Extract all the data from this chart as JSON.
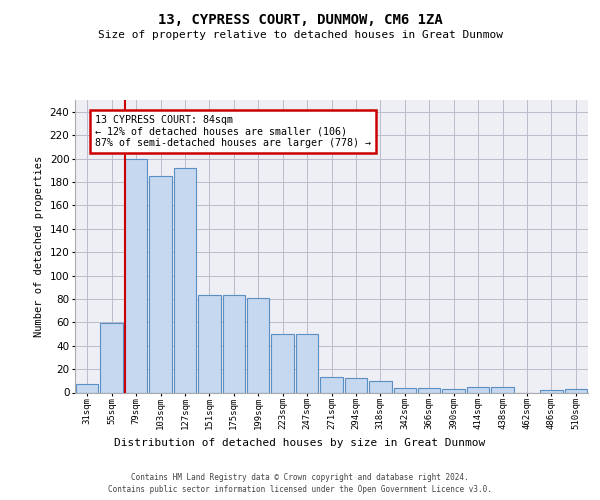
{
  "title": "13, CYPRESS COURT, DUNMOW, CM6 1ZA",
  "subtitle": "Size of property relative to detached houses in Great Dunmow",
  "xlabel": "Distribution of detached houses by size in Great Dunmow",
  "ylabel": "Number of detached properties",
  "bar_color": "#c5d8f0",
  "bar_edge_color": "#5a8fc4",
  "categories": [
    "31sqm",
    "55sqm",
    "79sqm",
    "103sqm",
    "127sqm",
    "151sqm",
    "175sqm",
    "199sqm",
    "223sqm",
    "247sqm",
    "271sqm",
    "294sqm",
    "318sqm",
    "342sqm",
    "366sqm",
    "390sqm",
    "414sqm",
    "438sqm",
    "462sqm",
    "486sqm",
    "510sqm"
  ],
  "values": [
    7,
    59,
    200,
    185,
    192,
    83,
    83,
    81,
    50,
    50,
    13,
    12,
    10,
    4,
    4,
    3,
    5,
    5,
    0,
    2,
    3
  ],
  "ylim": [
    0,
    250
  ],
  "yticks": [
    0,
    20,
    40,
    60,
    80,
    100,
    120,
    140,
    160,
    180,
    200,
    220,
    240
  ],
  "property_bin_index": 2,
  "annotation_line1": "13 CYPRESS COURT: 84sqm",
  "annotation_line2": "← 12% of detached houses are smaller (106)",
  "annotation_line3": "87% of semi-detached houses are larger (778) →",
  "annotation_color": "#cc0000",
  "vline_color": "#cc0000",
  "footer_line1": "Contains HM Land Registry data © Crown copyright and database right 2024.",
  "footer_line2": "Contains public sector information licensed under the Open Government Licence v3.0.",
  "plot_bg_color": "#eeeef5",
  "grid_color": "#bbbbcc"
}
